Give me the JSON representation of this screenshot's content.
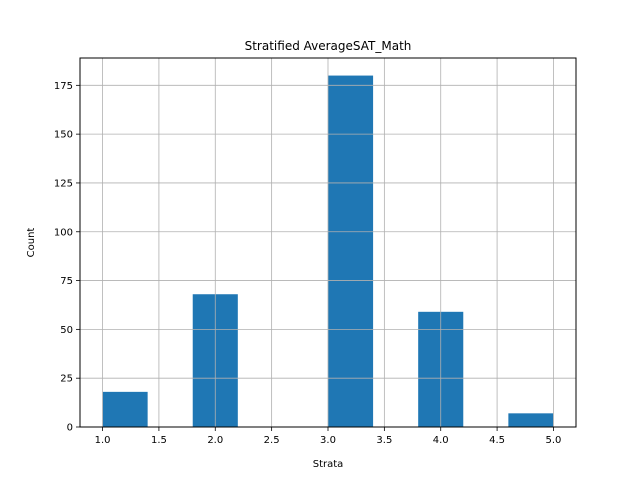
{
  "chart_data": {
    "type": "bar",
    "title": "Stratified AverageSAT_Math",
    "xlabel": "Strata",
    "ylabel": "Count",
    "bins": [
      {
        "x0": 1.0,
        "x1": 1.4,
        "count": 18
      },
      {
        "x0": 1.4,
        "x1": 1.8,
        "count": 0
      },
      {
        "x0": 1.8,
        "x1": 2.2,
        "count": 68
      },
      {
        "x0": 2.2,
        "x1": 2.6,
        "count": 0
      },
      {
        "x0": 2.6,
        "x1": 3.0,
        "count": 0
      },
      {
        "x0": 3.0,
        "x1": 3.4,
        "count": 180
      },
      {
        "x0": 3.4,
        "x1": 3.8,
        "count": 0
      },
      {
        "x0": 3.8,
        "x1": 4.2,
        "count": 59
      },
      {
        "x0": 4.2,
        "x1": 4.6,
        "count": 0
      },
      {
        "x0": 4.6,
        "x1": 5.0,
        "count": 7
      }
    ],
    "xlim": [
      0.8,
      5.2
    ],
    "ylim": [
      0,
      189
    ],
    "xticks": [
      "1.0",
      "1.5",
      "2.0",
      "2.5",
      "3.0",
      "3.5",
      "4.0",
      "4.5",
      "5.0"
    ],
    "xtick_values": [
      1.0,
      1.5,
      2.0,
      2.5,
      3.0,
      3.5,
      4.0,
      4.5,
      5.0
    ],
    "yticks": [
      "0",
      "25",
      "50",
      "75",
      "100",
      "125",
      "150",
      "175"
    ],
    "ytick_values": [
      0,
      25,
      50,
      75,
      100,
      125,
      150,
      175
    ],
    "grid": true,
    "bar_color": "#1f77b4",
    "grid_color": "#b0b0b0"
  }
}
